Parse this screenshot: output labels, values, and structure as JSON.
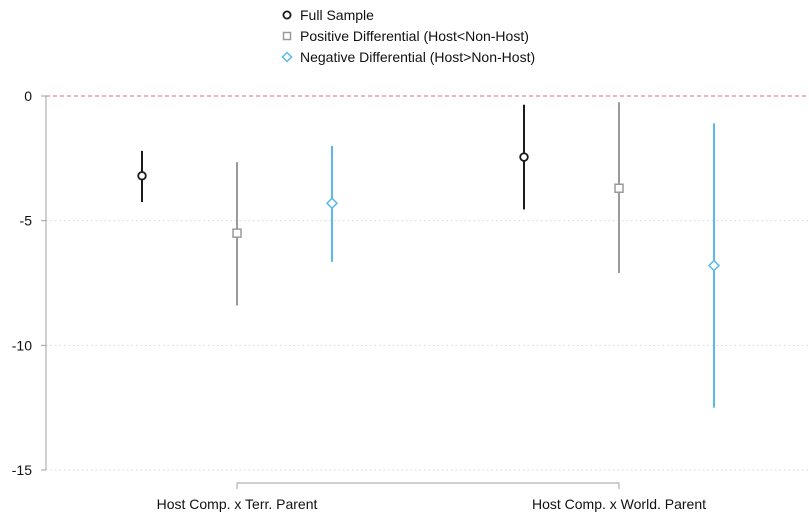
{
  "chart_data": {
    "type": "scatter",
    "subtype": "coefficient-plot-with-confidence-intervals",
    "title": "",
    "xlabel": "",
    "ylabel": "",
    "categories": [
      "Host Comp. x Terr. Parent",
      "Host Comp. x World. Parent"
    ],
    "ylim": [
      -15,
      0
    ],
    "yticks": [
      0,
      -5,
      -10,
      -15
    ],
    "ytick_labels": [
      "0",
      "-5",
      "-10",
      "-15"
    ],
    "reference_line": {
      "y": 0,
      "style": "dashed",
      "color": "#d98b94"
    },
    "grid": true,
    "legend_position": "top-center",
    "series": [
      {
        "name": "Full Sample",
        "marker": "circle",
        "color": "#1a1a1a",
        "points": [
          {
            "category": "Host Comp. x Terr. Parent",
            "estimate": -3.2,
            "lower": -4.25,
            "upper": -2.2
          },
          {
            "category": "Host Comp. x World. Parent",
            "estimate": -2.45,
            "lower": -4.55,
            "upper": -0.35
          }
        ]
      },
      {
        "name": "Positive Differential (Host<Non-Host)",
        "marker": "square",
        "color": "#9a9a9a",
        "points": [
          {
            "category": "Host Comp. x Terr. Parent",
            "estimate": -5.5,
            "lower": -8.4,
            "upper": -2.65
          },
          {
            "category": "Host Comp. x World. Parent",
            "estimate": -3.7,
            "lower": -7.1,
            "upper": -0.25
          }
        ]
      },
      {
        "name": "Negative Differential (Host>Non-Host)",
        "marker": "diamond",
        "color": "#5bb8e8",
        "points": [
          {
            "category": "Host Comp. x Terr. Parent",
            "estimate": -4.3,
            "lower": -6.65,
            "upper": -2.0
          },
          {
            "category": "Host Comp. x World. Parent",
            "estimate": -6.8,
            "lower": -12.5,
            "upper": -1.1
          }
        ]
      }
    ]
  }
}
